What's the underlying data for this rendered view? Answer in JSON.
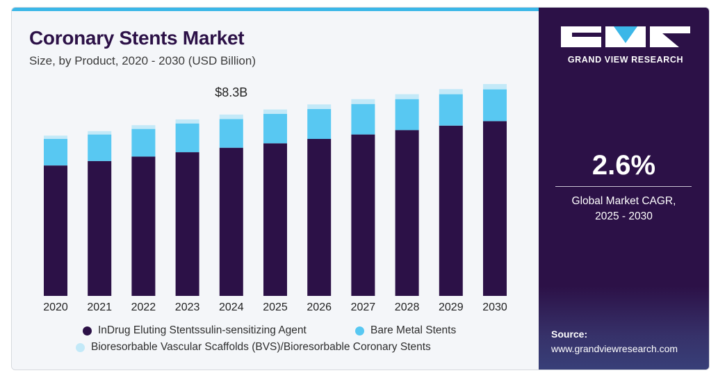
{
  "header": {
    "title": "Coronary Stents Market",
    "subtitle": "Size, by Product, 2020 - 2030 (USD Billion)"
  },
  "chart_data": {
    "type": "bar",
    "stacked": true,
    "title": "Coronary Stents Market",
    "subtitle": "Size, by Product, 2020 - 2030 (USD Billion)",
    "categories": [
      "2020",
      "2021",
      "2022",
      "2023",
      "2024",
      "2025",
      "2026",
      "2027",
      "2028",
      "2029",
      "2030"
    ],
    "series": [
      {
        "name": "InDrug Eluting Stentssulin-sensitizing Agent",
        "color": "#2c1147",
        "values": [
          5.9,
          6.1,
          6.3,
          6.5,
          6.7,
          6.9,
          7.1,
          7.3,
          7.5,
          7.7,
          7.9
        ]
      },
      {
        "name": "Bare Metal Stents",
        "color": "#58c8f2",
        "values": [
          1.2,
          1.2,
          1.25,
          1.3,
          1.3,
          1.33,
          1.35,
          1.38,
          1.4,
          1.42,
          1.44
        ]
      },
      {
        "name": "Bioresorbable Vascular Scaffolds (BVS)/Bioresorbable Coronary Stents",
        "color": "#c3e9f8",
        "values": [
          0.15,
          0.15,
          0.17,
          0.18,
          0.2,
          0.2,
          0.21,
          0.22,
          0.22,
          0.23,
          0.24
        ]
      }
    ],
    "annotations": [
      {
        "category": "2024",
        "text": "$8.3B"
      }
    ],
    "ylim": [
      0,
      9.8
    ],
    "legend_position": "bottom"
  },
  "sidebar": {
    "brand_name": "GRAND VIEW RESEARCH",
    "cagr_value": "2.6%",
    "cagr_label_line1": "Global Market CAGR,",
    "cagr_label_line2": "2025 - 2030",
    "source_label": "Source:",
    "source_url": "www.grandviewresearch.com"
  }
}
